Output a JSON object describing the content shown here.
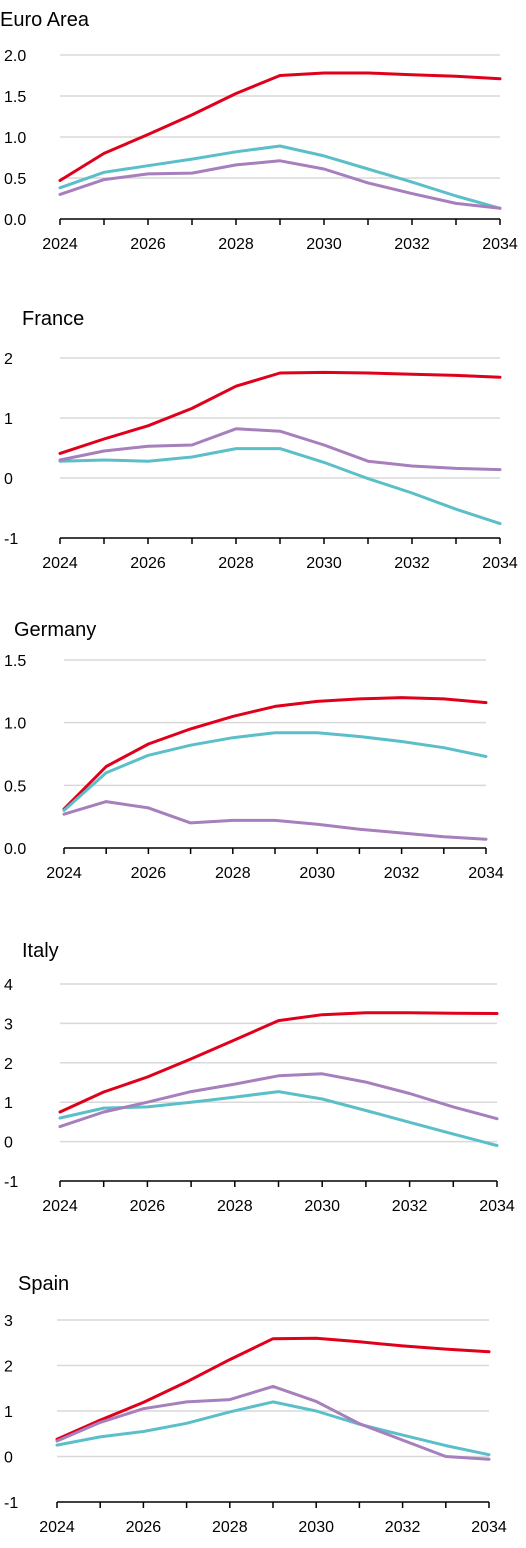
{
  "colors": {
    "red": "#e0001b",
    "teal": "#5bbfc9",
    "purple": "#a67fbc",
    "grid": "#d9d9d9"
  },
  "chart_data": [
    {
      "type": "line",
      "title": "Euro Area",
      "x": [
        2024,
        2025,
        2026,
        2027,
        2028,
        2029,
        2030,
        2031,
        2032,
        2033,
        2034
      ],
      "xticks": [
        "2024",
        "2026",
        "2028",
        "2030",
        "2032",
        "2034"
      ],
      "yticks": [
        "0.0",
        "0.5",
        "1.0",
        "1.5",
        "2.0"
      ],
      "ylim": [
        0,
        2
      ],
      "grid": true,
      "series": [
        {
          "color": "#e0001b",
          "values": [
            0.47,
            0.8,
            1.03,
            1.27,
            1.53,
            1.75,
            1.78,
            1.78,
            1.76,
            1.74,
            1.71
          ]
        },
        {
          "color": "#5bbfc9",
          "values": [
            0.38,
            0.57,
            0.65,
            0.73,
            0.82,
            0.89,
            0.77,
            0.61,
            0.45,
            0.28,
            0.13
          ]
        },
        {
          "color": "#a67fbc",
          "values": [
            0.3,
            0.48,
            0.55,
            0.56,
            0.66,
            0.71,
            0.61,
            0.44,
            0.31,
            0.19,
            0.13
          ]
        }
      ]
    },
    {
      "type": "line",
      "title": "France",
      "x": [
        2024,
        2025,
        2026,
        2027,
        2028,
        2029,
        2030,
        2031,
        2032,
        2033,
        2034
      ],
      "xticks": [
        "2024",
        "2026",
        "2028",
        "2030",
        "2032",
        "2034"
      ],
      "yticks": [
        "-1",
        "0",
        "1",
        "2"
      ],
      "ylim": [
        -1,
        2
      ],
      "grid": true,
      "series": [
        {
          "color": "#e0001b",
          "values": [
            0.41,
            0.65,
            0.87,
            1.16,
            1.53,
            1.75,
            1.76,
            1.75,
            1.73,
            1.71,
            1.68
          ]
        },
        {
          "color": "#5bbfc9",
          "values": [
            0.28,
            0.3,
            0.28,
            0.35,
            0.49,
            0.49,
            0.26,
            -0.01,
            -0.25,
            -0.52,
            -0.76
          ]
        },
        {
          "color": "#a67fbc",
          "values": [
            0.3,
            0.45,
            0.53,
            0.55,
            0.82,
            0.78,
            0.55,
            0.28,
            0.2,
            0.16,
            0.14
          ]
        }
      ]
    },
    {
      "type": "line",
      "title": "Germany",
      "x": [
        2024,
        2025,
        2026,
        2027,
        2028,
        2029,
        2030,
        2031,
        2032,
        2033,
        2034
      ],
      "xticks": [
        "2024",
        "2026",
        "2028",
        "2030",
        "2032",
        "2034"
      ],
      "yticks": [
        "0.0",
        "0.5",
        "1.0",
        "1.5"
      ],
      "ylim": [
        0,
        1.5
      ],
      "grid": true,
      "series": [
        {
          "color": "#e0001b",
          "values": [
            0.31,
            0.65,
            0.83,
            0.95,
            1.05,
            1.13,
            1.17,
            1.19,
            1.2,
            1.19,
            1.16
          ]
        },
        {
          "color": "#5bbfc9",
          "values": [
            0.3,
            0.6,
            0.74,
            0.82,
            0.88,
            0.92,
            0.92,
            0.89,
            0.85,
            0.8,
            0.73
          ]
        },
        {
          "color": "#a67fbc",
          "values": [
            0.27,
            0.37,
            0.32,
            0.2,
            0.22,
            0.22,
            0.19,
            0.15,
            0.12,
            0.09,
            0.07
          ]
        }
      ]
    },
    {
      "type": "line",
      "title": "Italy",
      "x": [
        2024,
        2025,
        2026,
        2027,
        2028,
        2029,
        2030,
        2031,
        2032,
        2033,
        2034
      ],
      "xticks": [
        "2024",
        "2026",
        "2028",
        "2030",
        "2032",
        "2034"
      ],
      "yticks": [
        "-1",
        "0",
        "1",
        "2",
        "3",
        "4"
      ],
      "ylim": [
        -1,
        4
      ],
      "grid": true,
      "series": [
        {
          "color": "#e0001b",
          "values": [
            0.75,
            1.26,
            1.64,
            2.1,
            2.58,
            3.07,
            3.22,
            3.27,
            3.27,
            3.26,
            3.25
          ]
        },
        {
          "color": "#5bbfc9",
          "values": [
            0.6,
            0.85,
            0.88,
            1.0,
            1.13,
            1.27,
            1.08,
            0.79,
            0.49,
            0.19,
            -0.1
          ]
        },
        {
          "color": "#a67fbc",
          "values": [
            0.38,
            0.75,
            1.0,
            1.27,
            1.46,
            1.67,
            1.72,
            1.51,
            1.22,
            0.88,
            0.58
          ]
        }
      ]
    },
    {
      "type": "line",
      "title": "Spain",
      "x": [
        2024,
        2025,
        2026,
        2027,
        2028,
        2029,
        2030,
        2031,
        2032,
        2033,
        2034
      ],
      "xticks": [
        "2024",
        "2026",
        "2028",
        "2030",
        "2032",
        "2034"
      ],
      "yticks": [
        "-1",
        "0",
        "1",
        "2",
        "3"
      ],
      "ylim": [
        -1,
        3
      ],
      "grid": true,
      "series": [
        {
          "color": "#e0001b",
          "values": [
            0.38,
            0.8,
            1.19,
            1.64,
            2.13,
            2.59,
            2.6,
            2.52,
            2.43,
            2.36,
            2.3
          ]
        },
        {
          "color": "#5bbfc9",
          "values": [
            0.25,
            0.43,
            0.55,
            0.73,
            0.98,
            1.2,
            1.0,
            0.71,
            0.47,
            0.24,
            0.04
          ]
        },
        {
          "color": "#a67fbc",
          "values": [
            0.34,
            0.75,
            1.05,
            1.2,
            1.25,
            1.54,
            1.21,
            0.72,
            0.36,
            0.0,
            -0.06
          ]
        }
      ]
    }
  ]
}
